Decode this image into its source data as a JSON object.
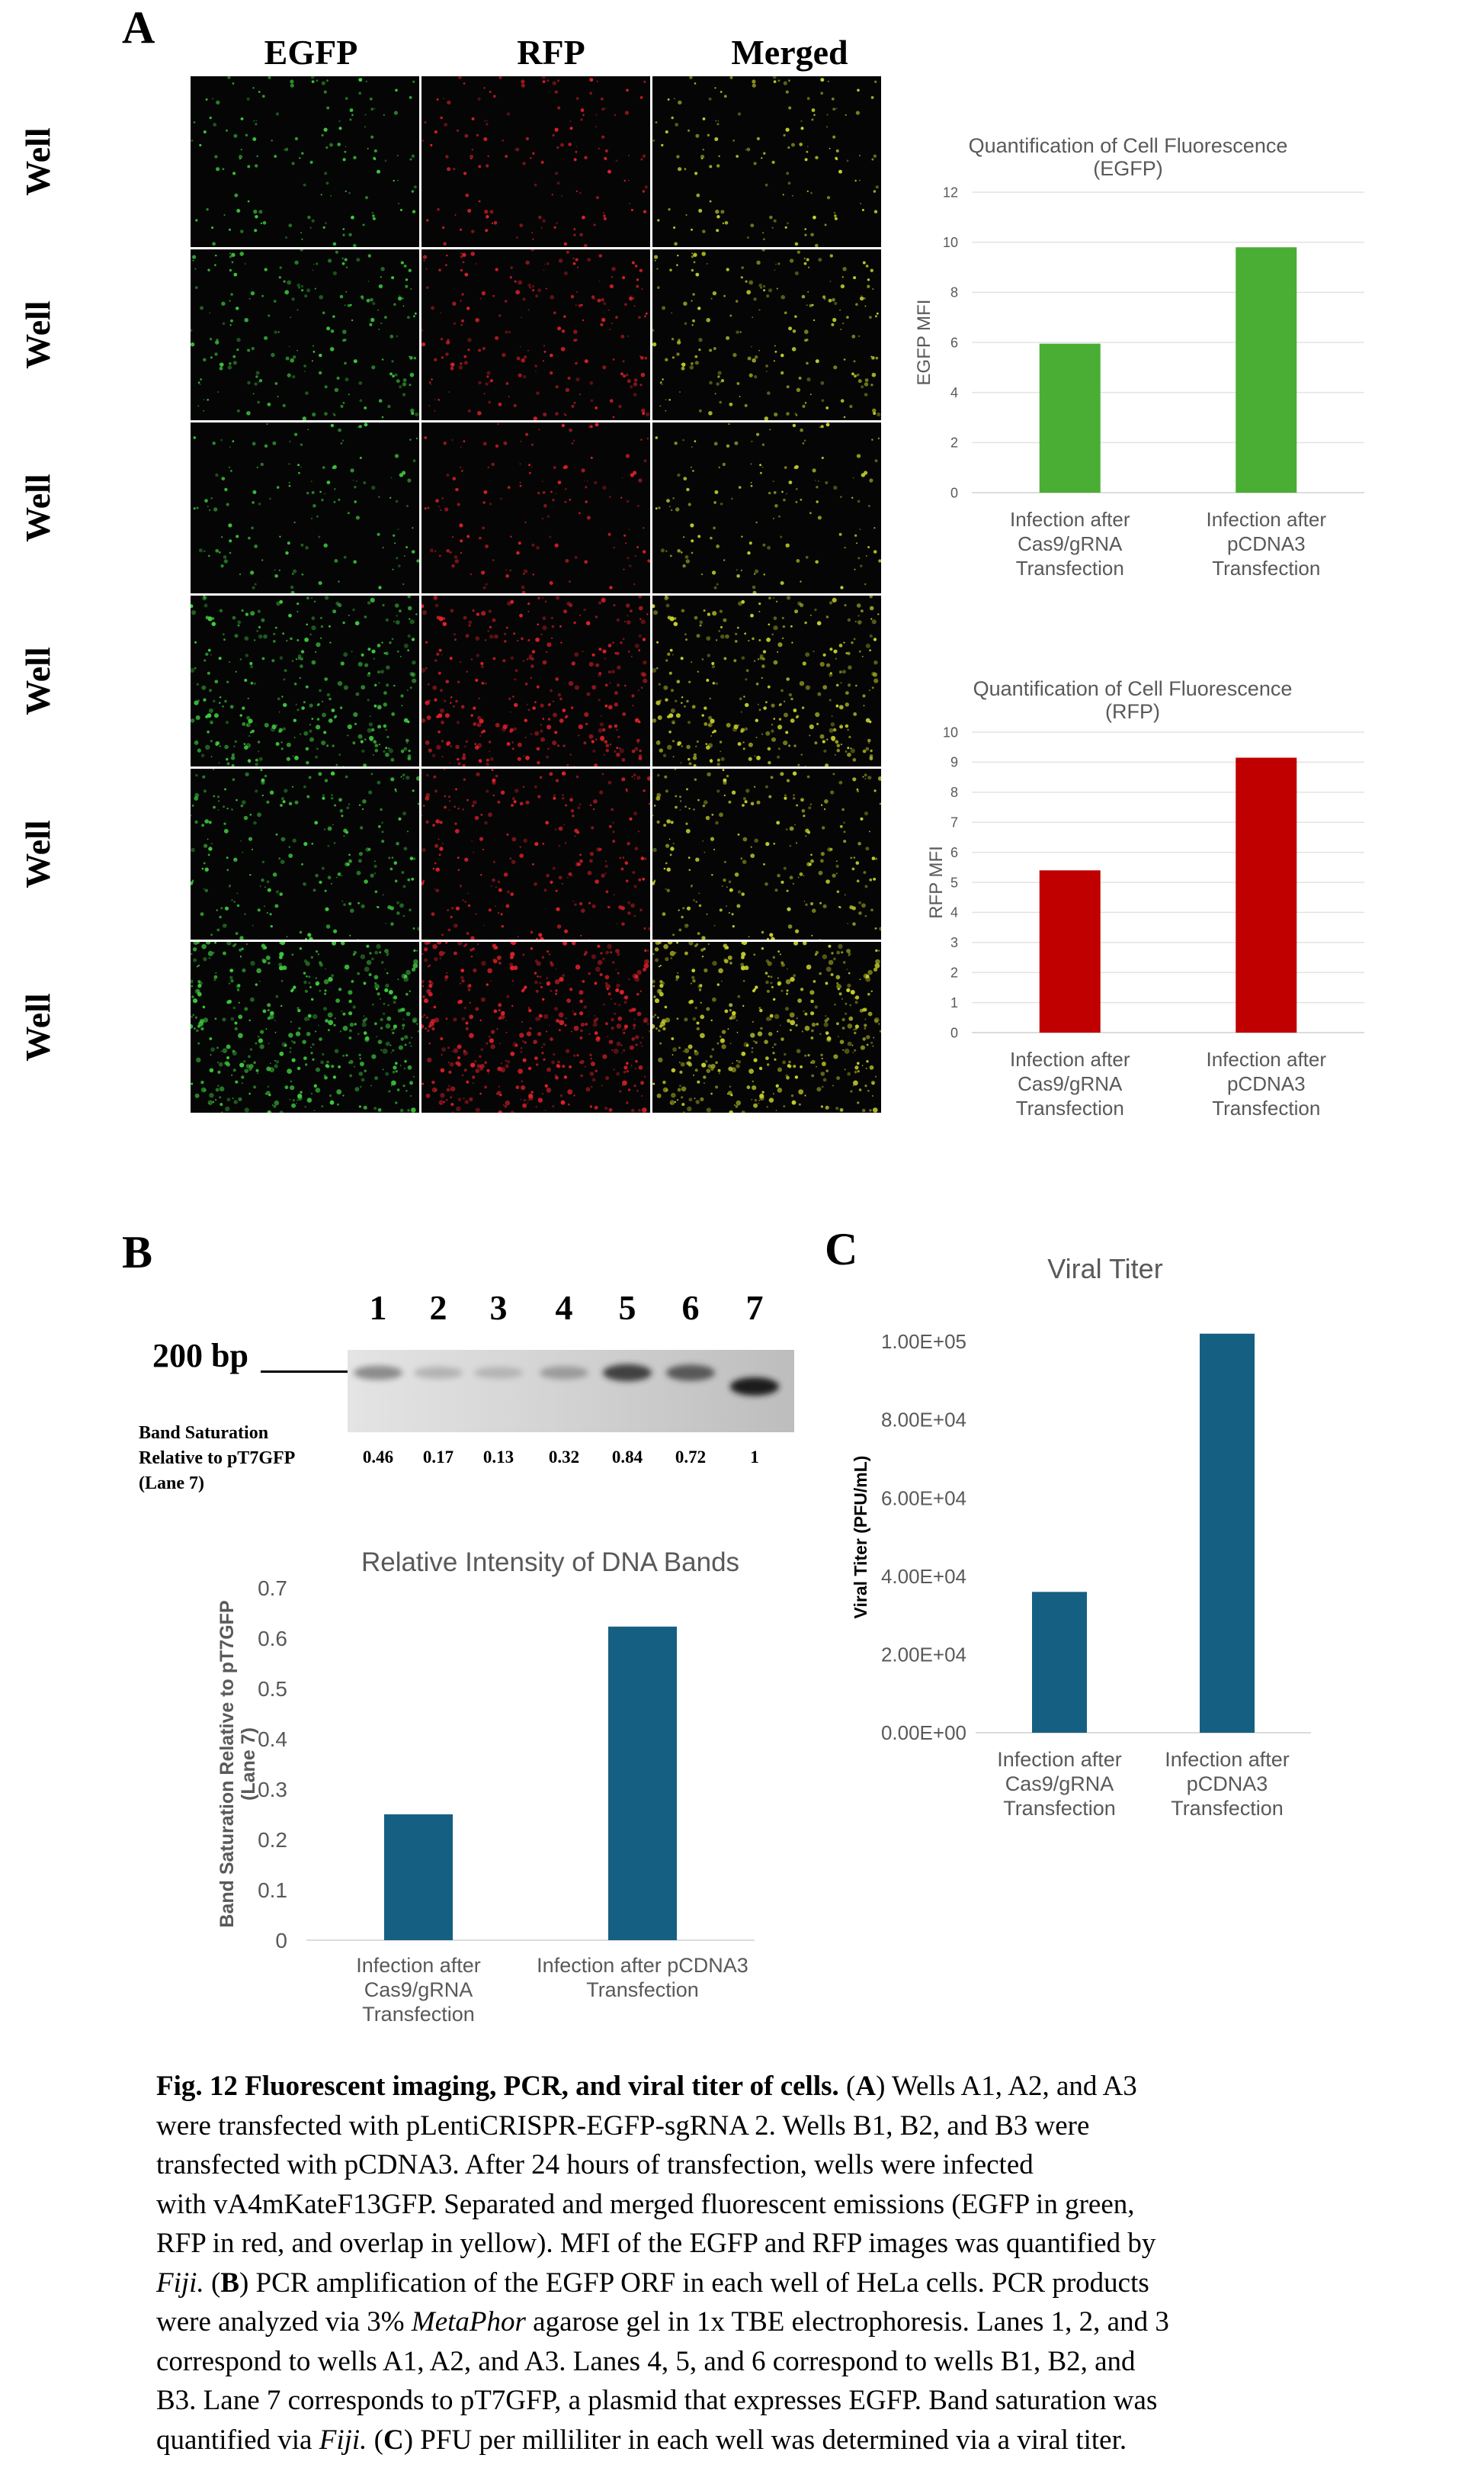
{
  "panels": {
    "a": "A",
    "b": "B",
    "c": "C"
  },
  "panel_a": {
    "columns": [
      "EGFP",
      "RFP",
      "Merged"
    ],
    "rows": [
      "Well",
      "Well",
      "Well",
      "Well",
      "Well",
      "Well"
    ],
    "row_density": [
      0.55,
      0.8,
      0.55,
      1.25,
      0.9,
      1.7
    ],
    "colors": {
      "egfp": "#3ecb3e",
      "rfp": "#e0202a",
      "merged": "#c6cf2a"
    }
  },
  "gel": {
    "lanes": [
      "1",
      "2",
      "3",
      "4",
      "5",
      "6",
      "7"
    ],
    "bp_label": "200 bp",
    "saturation_label": [
      "Band Saturation",
      "Relative to pT7GFP",
      "(Lane 7)"
    ],
    "values": [
      "0.46",
      "0.17",
      "0.13",
      "0.32",
      "0.84",
      "0.72",
      "1"
    ],
    "intensities": [
      0.46,
      0.17,
      0.13,
      0.32,
      0.84,
      0.72,
      1
    ]
  },
  "chart_data": [
    {
      "id": "egfp",
      "type": "bar",
      "title": [
        "Quantification of Cell Fluorescence",
        "(EGFP)"
      ],
      "ylabel": "EGFP MFI",
      "xlabel": "",
      "categories": [
        [
          "Infection after",
          "Cas9/gRNA",
          "Transfection"
        ],
        [
          "Infection after",
          "pCDNA3",
          "Transfection"
        ]
      ],
      "values": [
        5.95,
        9.8
      ],
      "ylim": [
        0,
        12
      ],
      "yticks": [
        "0",
        "2",
        "4",
        "6",
        "8",
        "10",
        "12"
      ],
      "color": "#4aad34",
      "grid": true
    },
    {
      "id": "rfp",
      "type": "bar",
      "title": [
        "Quantification of Cell Fluorescence",
        "(RFP)"
      ],
      "ylabel": "RFP MFI",
      "xlabel": "",
      "categories": [
        [
          "Infection after",
          "Cas9/gRNA",
          "Transfection"
        ],
        [
          "Infection after",
          "pCDNA3",
          "Transfection"
        ]
      ],
      "values": [
        5.4,
        9.15
      ],
      "ylim": [
        0,
        10
      ],
      "yticks": [
        "0",
        "1",
        "2",
        "3",
        "4",
        "5",
        "6",
        "7",
        "8",
        "9",
        "10"
      ],
      "color": "#c00000",
      "grid": true
    },
    {
      "id": "dna",
      "type": "bar",
      "title": [
        "Relative Intensity of DNA Bands"
      ],
      "ylabel": [
        "Band Saturation Relative to pT7GFP",
        "(Lane 7)"
      ],
      "xlabel": "",
      "categories": [
        [
          "Infection after",
          "Cas9/gRNA",
          "Transfection"
        ],
        [
          "Infection after pCDNA3",
          "Transfection"
        ]
      ],
      "values": [
        0.25,
        0.623
      ],
      "ylim": [
        0,
        0.7
      ],
      "yticks": [
        "0",
        "0.1",
        "0.2",
        "0.3",
        "0.4",
        "0.5",
        "0.6",
        "0.7"
      ],
      "color": "#156082",
      "grid": false
    },
    {
      "id": "titer",
      "type": "bar",
      "title": [
        "Viral Titer"
      ],
      "ylabel": "Viral Titer (PFU/mL)",
      "xlabel": "",
      "categories": [
        [
          "Infection after",
          "Cas9/gRNA",
          "Transfection"
        ],
        [
          "Infection after",
          "pCDNA3",
          "Transfection"
        ]
      ],
      "values": [
        36000,
        102000
      ],
      "ylim": [
        0,
        100000
      ],
      "yticks": [
        "0.00E+00",
        "2.00E+04",
        "4.00E+04",
        "6.00E+04",
        "8.00E+04",
        "1.00E+05"
      ],
      "color": "#156082",
      "grid": false
    }
  ],
  "caption": {
    "bold_title": "Fig. 12 Fluorescent imaging, PCR, and viral titer of cells.",
    "lines": [
      [
        {
          "t": "Fig. 12 Fluorescent imaging, PCR, and viral titer of cells.",
          "s": "b"
        },
        {
          "t": " ("
        },
        {
          "t": "A",
          "s": "b"
        },
        {
          "t": ") Wells A1, A2, and A3"
        }
      ],
      [
        {
          "t": "were transfected with pLentiCRISPR-EGFP-sgRNA 2. Wells B1, B2, and B3 were"
        }
      ],
      [
        {
          "t": "transfected with pCDNA3. After 24 hours of transfection, wells were infected"
        }
      ],
      [
        {
          "t": "with vA4mKateF13GFP. Separated and merged fluorescent emissions (EGFP in green,"
        }
      ],
      [
        {
          "t": "RFP in red, and overlap in yellow). MFI of the EGFP and RFP images was quantified by"
        }
      ],
      [
        {
          "t": "Fiji.",
          "s": "i"
        },
        {
          "t": " ("
        },
        {
          "t": "B",
          "s": "b"
        },
        {
          "t": ") PCR amplification of the EGFP ORF in each well of HeLa cells. PCR products"
        }
      ],
      [
        {
          "t": "were analyzed via 3% "
        },
        {
          "t": "MetaPhor",
          "s": "i"
        },
        {
          "t": " agarose gel in 1x TBE electrophoresis. Lanes 1, 2, and 3"
        }
      ],
      [
        {
          "t": "correspond to wells A1, A2, and A3. Lanes 4, 5, and 6 correspond to wells B1, B2, and"
        }
      ],
      [
        {
          "t": "B3. Lane 7 corresponds to pT7GFP, a plasmid that expresses EGFP. Band saturation was"
        }
      ],
      [
        {
          "t": "quantified via "
        },
        {
          "t": "Fiji.",
          "s": "i"
        },
        {
          "t": " ("
        },
        {
          "t": "C",
          "s": "b"
        },
        {
          "t": ") PFU per milliliter in each well was determined via a viral titer."
        }
      ]
    ]
  }
}
